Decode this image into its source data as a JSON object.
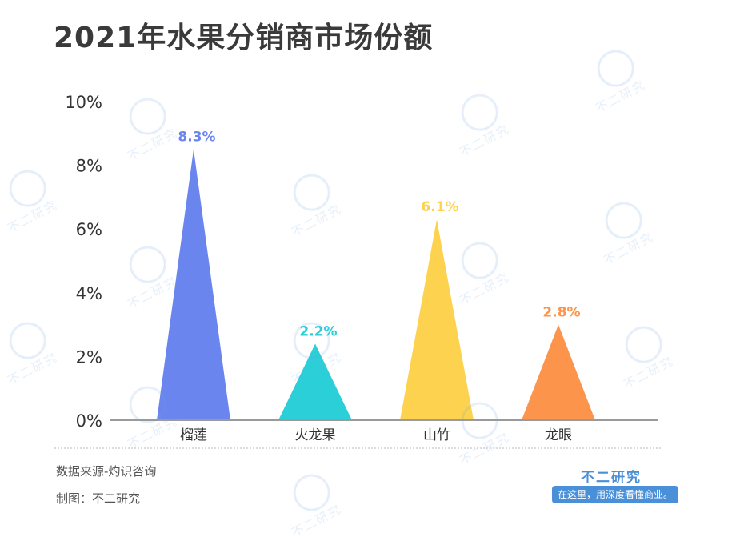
{
  "chart_data": {
    "type": "bar",
    "title": "2021年水果分销商市场份额",
    "categories": [
      "榴莲",
      "火龙果",
      "山竹",
      "龙眼"
    ],
    "values": [
      8.3,
      2.2,
      6.1,
      2.8
    ],
    "value_labels": [
      "8.3%",
      "2.2%",
      "6.1%",
      "2.8%"
    ],
    "colors": [
      "#6a86ee",
      "#2bcfd8",
      "#fcd24e",
      "#fc944c"
    ],
    "yticks": [
      "0%",
      "2%",
      "4%",
      "6%",
      "8%",
      "10%"
    ],
    "ylim": [
      0,
      10
    ],
    "xlabel": "",
    "ylabel": "",
    "grid": false,
    "mark_shape": "triangle"
  },
  "footer": {
    "source": "数据来源-灼识咨询",
    "made_by": "制图：不二研究"
  },
  "brand": {
    "name": "不二研究",
    "slogan": "在这里，用深度看懂商业。",
    "color": "#4a90d9"
  },
  "watermark": {
    "text": "不二研究"
  }
}
